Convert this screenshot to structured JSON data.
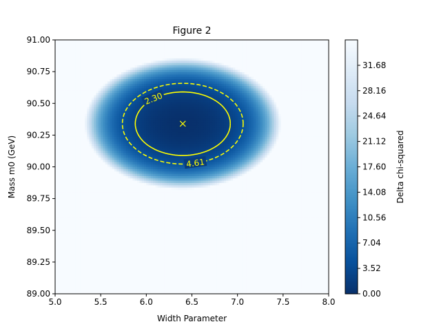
{
  "chart_data": {
    "type": "heatmap",
    "title": "Figure 2",
    "xlabel": "Width Parameter",
    "ylabel": "Mass m0 (GeV)",
    "xlim": [
      5.0,
      8.0
    ],
    "ylim": [
      89.0,
      91.0
    ],
    "x_ticks": [
      "5.0",
      "5.5",
      "6.0",
      "6.5",
      "7.0",
      "7.5",
      "8.0"
    ],
    "y_ticks": [
      "89.00",
      "89.25",
      "89.50",
      "89.75",
      "90.00",
      "90.25",
      "90.50",
      "90.75",
      "91.00"
    ],
    "best_fit": {
      "x": 6.4,
      "y": 90.34,
      "marker": "x"
    },
    "surface": {
      "center": [
        6.4,
        90.34
      ],
      "sigma_x_quadratic": 0.25,
      "sigma_y_quadratic": 0.12,
      "saturation": 35.2
    },
    "contours": [
      {
        "level": 2.3,
        "label": "2.30",
        "style": "solid",
        "color": "#ffff00"
      },
      {
        "level": 4.61,
        "label": "4.61",
        "style": "dashed",
        "color": "#ffff00"
      }
    ],
    "colorbar": {
      "label": "Delta chi-squared",
      "ticks": [
        "0.00",
        "3.52",
        "7.04",
        "10.56",
        "14.08",
        "17.60",
        "21.12",
        "24.64",
        "28.16",
        "31.68"
      ],
      "range": [
        0,
        35.2
      ],
      "colormap": "Blues_r"
    },
    "grid": false
  }
}
